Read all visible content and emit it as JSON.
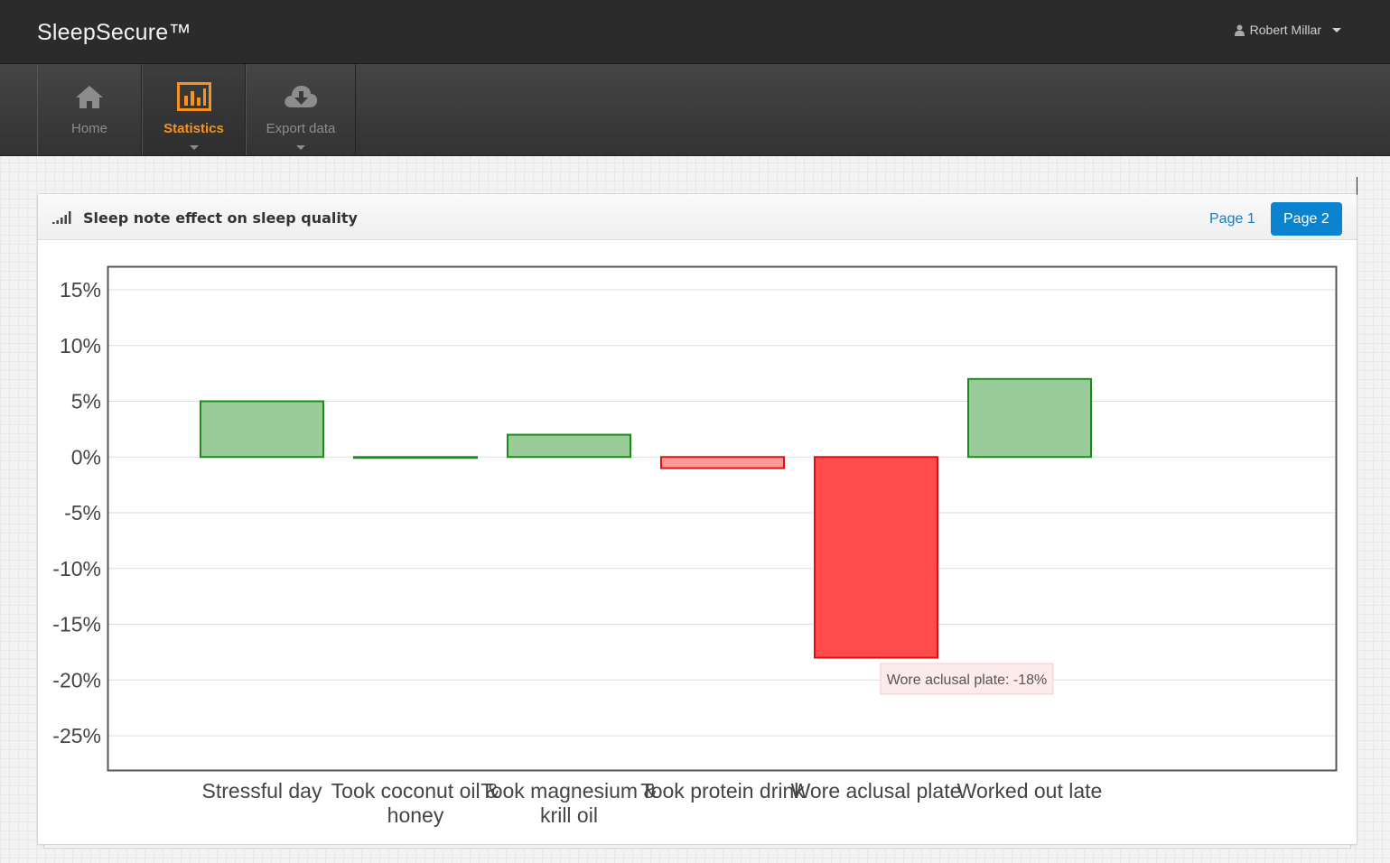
{
  "app": {
    "brand": "SleepSecure™",
    "user_name": "Robert Millar"
  },
  "nav": {
    "items": [
      {
        "label": "Home",
        "icon": "home-icon",
        "active": false
      },
      {
        "label": "Statistics",
        "icon": "bar-chart-icon",
        "active": true
      },
      {
        "label": "Export data",
        "icon": "cloud-download-icon",
        "active": false
      }
    ]
  },
  "panel": {
    "title": "Sleep note effect on sleep quality",
    "pages": [
      "Page 1",
      "Page 2"
    ],
    "active_page": "Page 2"
  },
  "tooltip": {
    "text": "Wore aclusal plate: -18%"
  },
  "colors": {
    "positive_fill": "#99cc99",
    "positive_stroke": "#1a8c1a",
    "negative_fill_light": "#ff9999",
    "negative_fill": "#ff4b4b",
    "negative_stroke": "#e01010",
    "accent": "#f7931e",
    "button_active": "#0a84d0"
  },
  "chart_data": {
    "type": "bar",
    "categories": [
      "Stressful day",
      "Took coconut oil & honey",
      "Took magnesium & krill oil",
      "Took protein drink",
      "Wore aclusal plate",
      "Worked out late"
    ],
    "category_lines": [
      [
        "Stressful day"
      ],
      [
        "Took coconut oil &",
        "honey"
      ],
      [
        "Took magnesium &",
        "krill oil"
      ],
      [
        "Took protein drink"
      ],
      [
        "Wore aclusal plate"
      ],
      [
        "Worked out late"
      ]
    ],
    "values": [
      5,
      0,
      2,
      -1,
      -18,
      7
    ],
    "value_unit": "%",
    "yticks": [
      15,
      10,
      5,
      0,
      -5,
      -10,
      -15,
      -20,
      -25
    ],
    "ytick_labels": [
      "15%",
      "10%",
      "5%",
      "0%",
      "-5%",
      "-10%",
      "-15%",
      "-20%",
      "-25%"
    ],
    "ylim": [
      -28,
      17
    ],
    "grid": true,
    "title": "",
    "xlabel": "",
    "ylabel": ""
  }
}
